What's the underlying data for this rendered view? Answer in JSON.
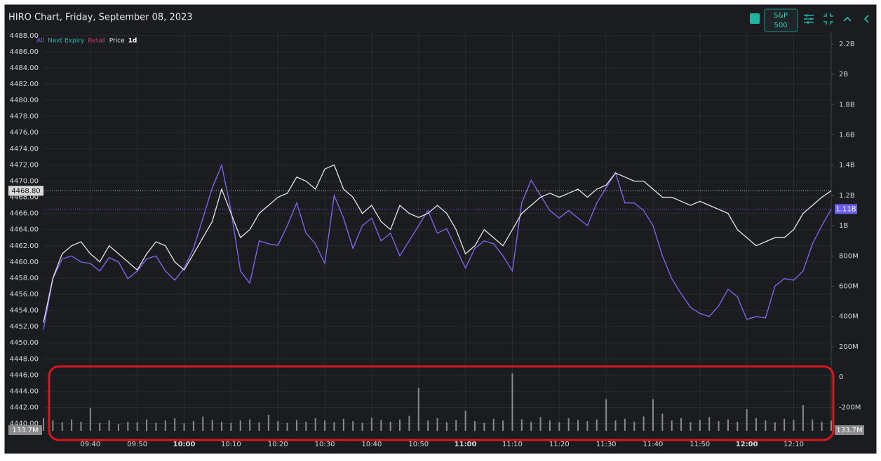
{
  "chart_data": {
    "type": "line",
    "title": "HIRO Chart, Friday, September 08, 2023",
    "index_button": [
      "S&P",
      "500"
    ],
    "legend": [
      {
        "text": "All",
        "color": "#7b6cf6"
      },
      {
        "text": "Next Expiry",
        "color": "#22b8a8"
      },
      {
        "text": "Retail",
        "color": "#c2417f"
      },
      {
        "text": "Price",
        "color": "#e6e6e6"
      },
      {
        "text": "1d",
        "color": "#ffffff"
      }
    ],
    "x": [
      "09:30",
      "09:32",
      "09:34",
      "09:36",
      "09:38",
      "09:40",
      "09:42",
      "09:44",
      "09:46",
      "09:48",
      "09:50",
      "09:52",
      "09:54",
      "09:56",
      "09:58",
      "10:00",
      "10:02",
      "10:04",
      "10:06",
      "10:08",
      "10:10",
      "10:12",
      "10:14",
      "10:16",
      "10:18",
      "10:20",
      "10:22",
      "10:24",
      "10:26",
      "10:28",
      "10:30",
      "10:32",
      "10:34",
      "10:36",
      "10:38",
      "10:40",
      "10:42",
      "10:44",
      "10:46",
      "10:48",
      "10:50",
      "10:52",
      "10:54",
      "10:56",
      "10:58",
      "11:00",
      "11:02",
      "11:04",
      "11:06",
      "11:08",
      "11:10",
      "11:12",
      "11:14",
      "11:16",
      "11:18",
      "11:20",
      "11:22",
      "11:24",
      "11:26",
      "11:28",
      "11:30",
      "11:32",
      "11:34",
      "11:36",
      "11:38",
      "11:40",
      "11:42",
      "11:44",
      "11:46",
      "11:48",
      "11:50",
      "11:52",
      "11:54",
      "11:56",
      "11:58",
      "12:00",
      "12:02",
      "12:04",
      "12:06",
      "12:08",
      "12:10",
      "12:12",
      "12:14",
      "12:16",
      "12:18"
    ],
    "xlim": [
      "09:30",
      "12:18"
    ],
    "xticks": [
      "09:40",
      "09:50",
      "10:00",
      "10:10",
      "10:20",
      "10:30",
      "10:40",
      "10:50",
      "11:00",
      "11:10",
      "11:20",
      "11:30",
      "11:40",
      "11:50",
      "12:00",
      "12:10"
    ],
    "series": [
      {
        "axis": "y2",
        "color": "#7b6cf6",
        "values": [
          315,
          650,
          780,
          800,
          760,
          750,
          700,
          790,
          760,
          650,
          700,
          780,
          800,
          700,
          640,
          720,
          850,
          1050,
          1250,
          1400,
          1100,
          700,
          620,
          900,
          880,
          870,
          1000,
          1150,
          950,
          880,
          750,
          1200,
          1050,
          850,
          1000,
          1050,
          900,
          950,
          800,
          900,
          1000,
          1100,
          950,
          980,
          850,
          720,
          850,
          900,
          880,
          800,
          700,
          1150,
          1300,
          1200,
          1100,
          1050,
          1100,
          1050,
          1000,
          1150,
          1250,
          1350,
          1150,
          1150,
          1100,
          1000,
          800,
          650,
          550,
          460,
          420,
          400,
          470,
          580,
          530,
          380,
          400,
          390,
          600,
          650,
          640,
          700,
          880,
          1000,
          1110
        ]
      },
      {
        "axis": "y",
        "color": "#e6e6e6",
        "values": [
          4452.5,
          4458,
          4461,
          4462,
          4462.5,
          4461,
          4460,
          4462,
          4461,
          4460,
          4459,
          4461,
          4462.5,
          4462,
          4460,
          4459,
          4461,
          4463,
          4465,
          4469,
          4466,
          4463,
          4464,
          4466,
          4467,
          4468,
          4468.5,
          4470.5,
          4470,
          4469,
          4471.5,
          4472,
          4469,
          4468,
          4466,
          4467,
          4465,
          4464,
          4467,
          4466,
          4465.5,
          4466,
          4467,
          4466,
          4464,
          4461,
          4462,
          4464,
          4463,
          4462,
          4464,
          4466,
          4467,
          4468,
          4468.5,
          4468,
          4468.5,
          4469,
          4468,
          4469,
          4469.5,
          4471,
          4470.5,
          4470,
          4470,
          4469,
          4468,
          4468,
          4467.5,
          4467,
          4467.5,
          4467,
          4466.5,
          4466,
          4464,
          4463,
          4462,
          4462.5,
          4463,
          4463,
          4464,
          4466,
          4467,
          4468,
          4468.8
        ]
      }
    ],
    "volume": {
      "color": "#8a8a8a",
      "lim": [
        0,
        100
      ],
      "label": "133.7M",
      "values": [
        22,
        18,
        15,
        20,
        16,
        40,
        14,
        18,
        12,
        16,
        15,
        20,
        14,
        18,
        22,
        13,
        17,
        25,
        19,
        16,
        14,
        18,
        20,
        15,
        28,
        17,
        14,
        19,
        16,
        22,
        18,
        15,
        21,
        17,
        14,
        23,
        19,
        16,
        20,
        26,
        75,
        18,
        22,
        15,
        19,
        35,
        17,
        14,
        21,
        18,
        100,
        20,
        16,
        24,
        18,
        15,
        22,
        19,
        17,
        20,
        55,
        18,
        21,
        16,
        25,
        55,
        30,
        18,
        22,
        15,
        19,
        24,
        17,
        20,
        16,
        38,
        22,
        18,
        15,
        21,
        19,
        45,
        20,
        16,
        18
      ]
    },
    "ylim": [
      4439.1,
      4488.5
    ],
    "yticks": [
      {
        "value": 4440,
        "label": "4440.00"
      },
      {
        "value": 4442,
        "label": "4442.00"
      },
      {
        "value": 4444,
        "label": "4444.00"
      },
      {
        "value": 4446,
        "label": "4446.00"
      },
      {
        "value": 4448,
        "label": "4448.00"
      },
      {
        "value": 4450,
        "label": "4450.00"
      },
      {
        "value": 4452,
        "label": "4452.00"
      },
      {
        "value": 4454,
        "label": "4454.00"
      },
      {
        "value": 4456,
        "label": "4456.00"
      },
      {
        "value": 4458,
        "label": "4458.00"
      },
      {
        "value": 4460,
        "label": "4460.00"
      },
      {
        "value": 4462,
        "label": "4462.00"
      },
      {
        "value": 4464,
        "label": "4464.00"
      },
      {
        "value": 4466,
        "label": "4466.00"
      },
      {
        "value": 4468,
        "label": "4468.00"
      },
      {
        "value": 4470,
        "label": "4470.00"
      },
      {
        "value": 4472,
        "label": "4472.00"
      },
      {
        "value": 4474,
        "label": "4474.00"
      },
      {
        "value": 4476,
        "label": "4476.00"
      },
      {
        "value": 4478,
        "label": "4478.00"
      },
      {
        "value": 4480,
        "label": "4480.00"
      },
      {
        "value": 4482,
        "label": "4482.00"
      },
      {
        "value": 4484,
        "label": "4484.00"
      },
      {
        "value": 4486,
        "label": "4486.00"
      },
      {
        "value": 4488,
        "label": "4488.00"
      }
    ],
    "y2lim": [
      -356,
      2283
    ],
    "y2ticks": [
      {
        "value": -200,
        "label": "-200M"
      },
      0,
      {
        "value": 200,
        "label": "200M"
      },
      {
        "value": 400,
        "label": "400M"
      },
      {
        "value": 600,
        "label": "600M"
      },
      {
        "value": 800,
        "label": "800M"
      },
      {
        "value": 1000,
        "label": "1B"
      },
      {
        "value": 1200,
        "label": "1.2B"
      },
      {
        "value": 1400,
        "label": "1.4B"
      },
      {
        "value": 1600,
        "label": "1.6B"
      },
      {
        "value": 1800,
        "label": "1.8B"
      },
      {
        "value": 2000,
        "label": "2B"
      },
      {
        "value": 2200,
        "label": "2.2B"
      }
    ],
    "price_marker": {
      "value": 4468.8,
      "label": "4468.80"
    },
    "hiro_marker": {
      "value": 1110,
      "label": "1.11B",
      "color": "#6a5ff0"
    },
    "grid": true
  }
}
